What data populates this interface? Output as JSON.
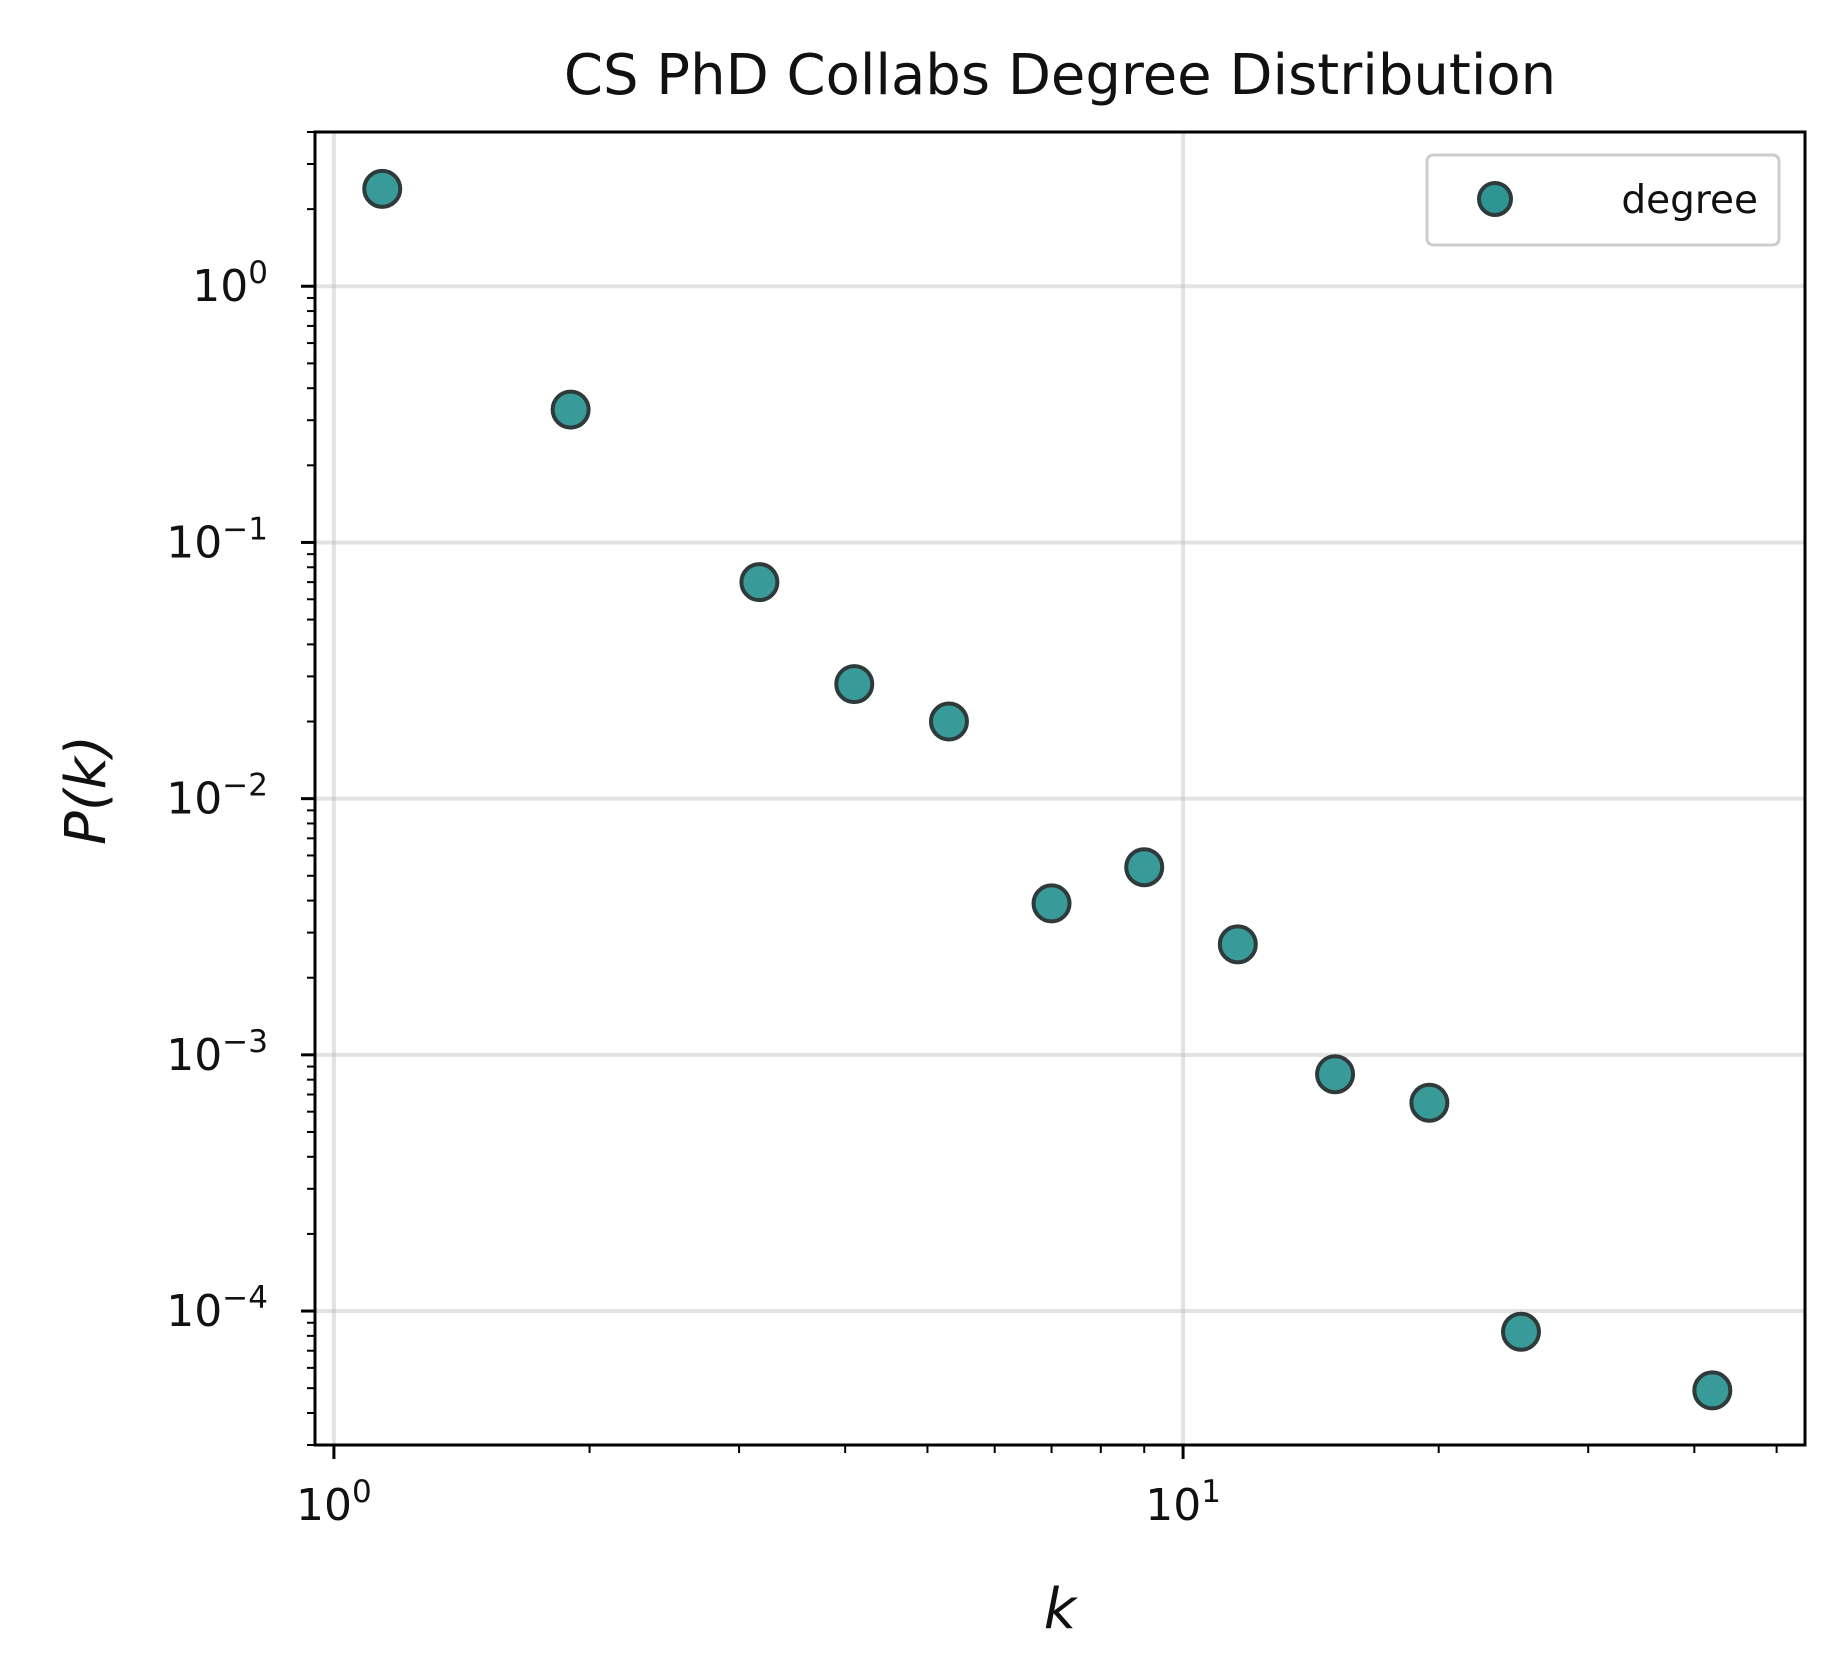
{
  "chart_data": {
    "type": "scatter",
    "title": "CS PhD Collabs Degree Distribution",
    "xlabel": "k",
    "ylabel": "P(k)",
    "xscale": "log",
    "yscale": "log",
    "xlim": [
      0.95,
      54
    ],
    "ylim": [
      3e-05,
      4
    ],
    "grid": true,
    "legend_placement": "top-right",
    "marker_color": "#2e9595",
    "marker_edge_color": "#2f3a3a",
    "x_ticks": [
      {
        "value": 1,
        "base": "10",
        "exp": "0"
      },
      {
        "value": 10,
        "base": "10",
        "exp": "1"
      }
    ],
    "y_ticks": [
      {
        "value": 1,
        "base": "10",
        "exp": "0"
      },
      {
        "value": 0.1,
        "base": "10",
        "exp": "−1"
      },
      {
        "value": 0.01,
        "base": "10",
        "exp": "−2"
      },
      {
        "value": 0.001,
        "base": "10",
        "exp": "−3"
      },
      {
        "value": 0.0001,
        "base": "10",
        "exp": "−4"
      }
    ],
    "series": [
      {
        "name": "degree",
        "x": [
          1.14,
          1.9,
          3.17,
          4.1,
          5.3,
          7.0,
          9.0,
          11.6,
          15.1,
          19.5,
          25.0,
          42.0
        ],
        "y": [
          2.4,
          0.33,
          0.07,
          0.028,
          0.02,
          0.0039,
          0.0054,
          0.0027,
          0.00084,
          0.00065,
          8.3e-05,
          4.9e-05
        ]
      }
    ]
  }
}
